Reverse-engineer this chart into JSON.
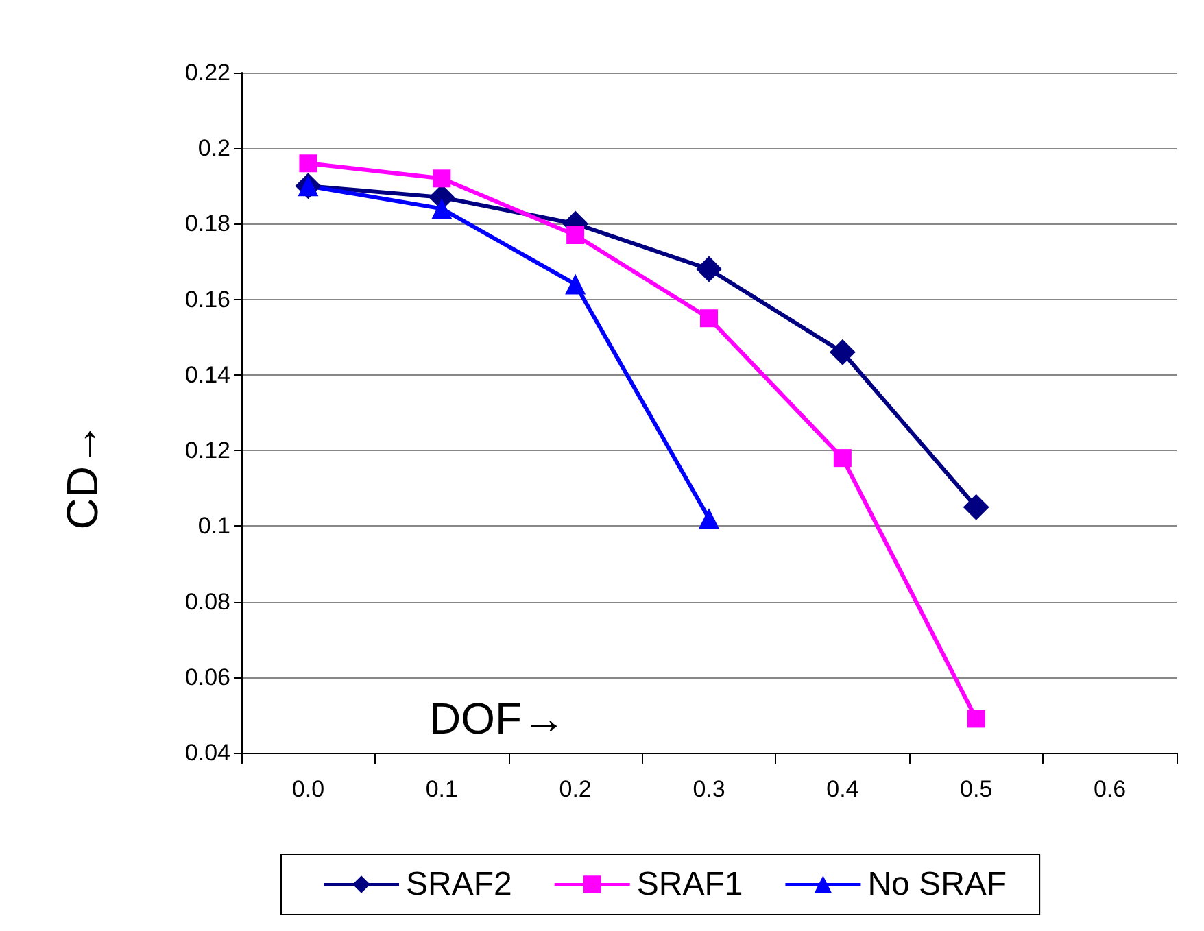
{
  "chart_data": {
    "type": "line",
    "xlabel": "DOF→",
    "ylabel": "CD→",
    "categories": [
      "0.0",
      "0.1",
      "0.2",
      "0.3",
      "0.4",
      "0.5",
      "0.6"
    ],
    "series": [
      {
        "name": "SRAF2",
        "color": "#000080",
        "marker": "diamond",
        "values": [
          0.19,
          0.187,
          0.18,
          0.168,
          0.146,
          0.105,
          null
        ]
      },
      {
        "name": "SRAF1",
        "color": "#ff00ff",
        "marker": "square",
        "values": [
          0.196,
          0.192,
          0.177,
          0.155,
          0.118,
          0.049,
          null
        ]
      },
      {
        "name": "No SRAF",
        "color": "#0000ff",
        "marker": "triangle",
        "values": [
          0.19,
          0.184,
          0.164,
          0.102,
          null,
          null,
          null
        ]
      }
    ],
    "ylim": [
      0.04,
      0.22
    ],
    "yticks": [
      0.04,
      0.06,
      0.08,
      0.1,
      0.12,
      0.14,
      0.16,
      0.18,
      0.2,
      0.22
    ],
    "grid": "y",
    "legend": "bottom",
    "line_style": "solid"
  }
}
